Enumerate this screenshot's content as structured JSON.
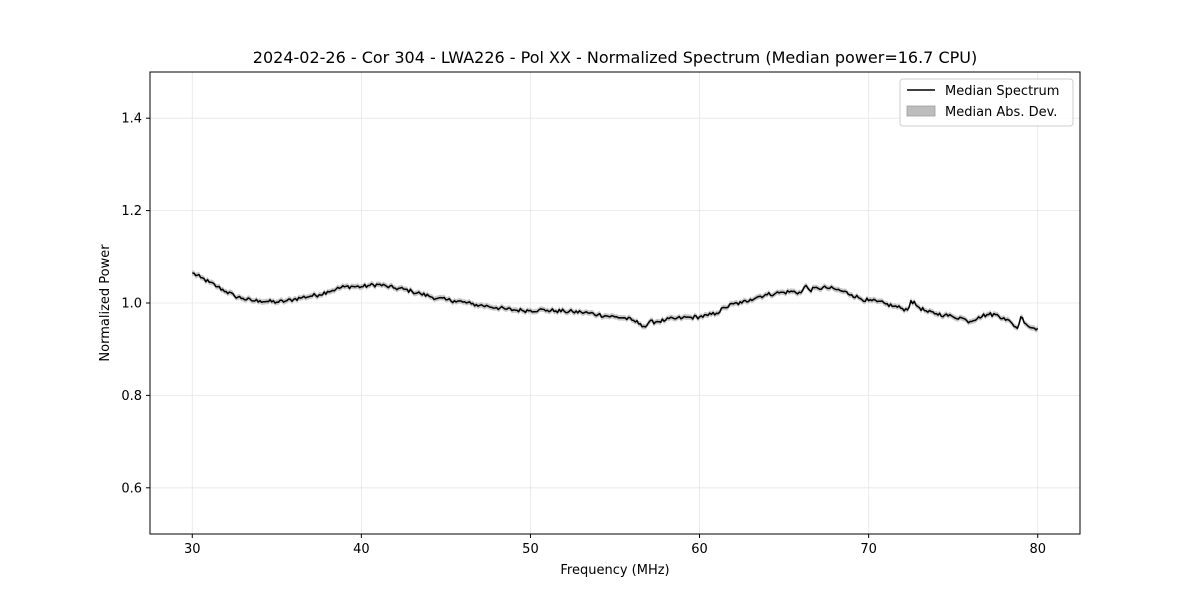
{
  "chart_data": {
    "type": "line",
    "title": "2024-02-26 - Cor 304 - LWA226 - Pol XX - Normalized Spectrum (Median power=16.7 CPU)",
    "xlabel": "Frequency (MHz)",
    "ylabel": "Normalized Power",
    "xlim": [
      27.5,
      82.5
    ],
    "ylim": [
      0.5,
      1.5
    ],
    "xticks": [
      30,
      40,
      50,
      60,
      70,
      80
    ],
    "yticks": [
      0.6,
      0.8,
      1.0,
      1.2,
      1.4
    ],
    "xtick_labels": [
      "30",
      "40",
      "50",
      "60",
      "70",
      "80"
    ],
    "ytick_labels": [
      "0.6",
      "0.8",
      "1.0",
      "1.2",
      "1.4"
    ],
    "grid": true,
    "legend_position": "top-right",
    "legend": [
      "Median Spectrum",
      "Median Abs. Dev."
    ],
    "series": [
      {
        "name": "Median Spectrum",
        "color": "#000000",
        "x": [
          30,
          30.5,
          31,
          31.5,
          32,
          32.5,
          33,
          33.5,
          34,
          34.5,
          35,
          35.5,
          36,
          36.5,
          37,
          37.5,
          38,
          38.5,
          39,
          39.5,
          40,
          40.5,
          41,
          41.5,
          42,
          42.5,
          43,
          43.5,
          44,
          44.5,
          45,
          45.5,
          46,
          46.5,
          47,
          47.5,
          48,
          48.5,
          49,
          49.5,
          50,
          50.5,
          51,
          51.5,
          52,
          52.5,
          53,
          53.5,
          54,
          54.5,
          55,
          55.5,
          56,
          56.5,
          56.8,
          57,
          57.5,
          58,
          58.5,
          59,
          59.5,
          60,
          60.5,
          61,
          61.5,
          62,
          62.5,
          63,
          63.5,
          64,
          64.5,
          65,
          65.5,
          66,
          66.3,
          66.5,
          67,
          67.5,
          68,
          68.5,
          69,
          69.5,
          70,
          70.5,
          71,
          71.5,
          72,
          72.3,
          72.5,
          73,
          73.5,
          74,
          74.5,
          75,
          75.5,
          75.8,
          76,
          76.5,
          77,
          77.5,
          78,
          78.5,
          78.8,
          79,
          79.5,
          80
        ],
        "y": [
          1.065,
          1.055,
          1.045,
          1.035,
          1.025,
          1.015,
          1.01,
          1.005,
          1.005,
          1.003,
          1.002,
          1.004,
          1.008,
          1.012,
          1.015,
          1.018,
          1.025,
          1.03,
          1.035,
          1.036,
          1.035,
          1.038,
          1.04,
          1.036,
          1.032,
          1.03,
          1.025,
          1.02,
          1.015,
          1.01,
          1.007,
          1.005,
          1.002,
          0.998,
          0.995,
          0.993,
          0.99,
          0.987,
          0.985,
          0.984,
          0.984,
          0.985,
          0.984,
          0.983,
          0.982,
          0.981,
          0.98,
          0.978,
          0.975,
          0.972,
          0.97,
          0.968,
          0.963,
          0.955,
          0.948,
          0.958,
          0.96,
          0.963,
          0.966,
          0.968,
          0.969,
          0.97,
          0.973,
          0.978,
          0.99,
          0.998,
          1.0,
          1.008,
          1.014,
          1.018,
          1.021,
          1.023,
          1.025,
          1.022,
          1.038,
          1.028,
          1.032,
          1.033,
          1.03,
          1.025,
          1.018,
          1.01,
          1.005,
          1.003,
          0.998,
          0.993,
          0.988,
          0.985,
          1.005,
          0.99,
          0.98,
          0.977,
          0.974,
          0.97,
          0.968,
          0.962,
          0.96,
          0.97,
          0.975,
          0.975,
          0.968,
          0.955,
          0.945,
          0.97,
          0.948,
          0.945
        ]
      },
      {
        "name": "Median Abs. Dev.",
        "type": "band",
        "color": "#bdbdbd",
        "half_width": 0.006
      }
    ]
  }
}
